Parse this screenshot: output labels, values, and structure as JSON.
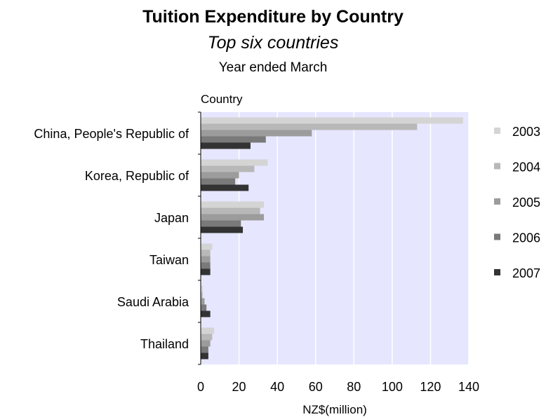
{
  "chart_data": {
    "type": "bar",
    "orientation": "horizontal",
    "title": "Tuition Expenditure by Country",
    "subtitle": "Top six countries",
    "caption": "Year ended March",
    "ylabel": "Country",
    "xlabel": "NZ$(million)",
    "xlim": [
      0,
      140
    ],
    "xticks": [
      0,
      20,
      40,
      60,
      80,
      100,
      120,
      140
    ],
    "categories": [
      "China, People's Republic of",
      "Korea, Republic of",
      "Japan",
      "Taiwan",
      "Saudi Arabia",
      "Thailand"
    ],
    "series": [
      {
        "name": "2003",
        "color": "#d4d4d4",
        "values": [
          137,
          35,
          33,
          6,
          1,
          7
        ]
      },
      {
        "name": "2004",
        "color": "#b8b8b8",
        "values": [
          113,
          28,
          31,
          5,
          1,
          6
        ]
      },
      {
        "name": "2005",
        "color": "#9c9c9c",
        "values": [
          58,
          20,
          33,
          5,
          2,
          5
        ]
      },
      {
        "name": "2006",
        "color": "#7a7a7a",
        "values": [
          34,
          18,
          21,
          5,
          3,
          4
        ]
      },
      {
        "name": "2007",
        "color": "#333333",
        "values": [
          26,
          25,
          22,
          5,
          5,
          4
        ]
      }
    ],
    "grid": true,
    "plot_background": "#e6e6ff",
    "legend_position": "right"
  }
}
